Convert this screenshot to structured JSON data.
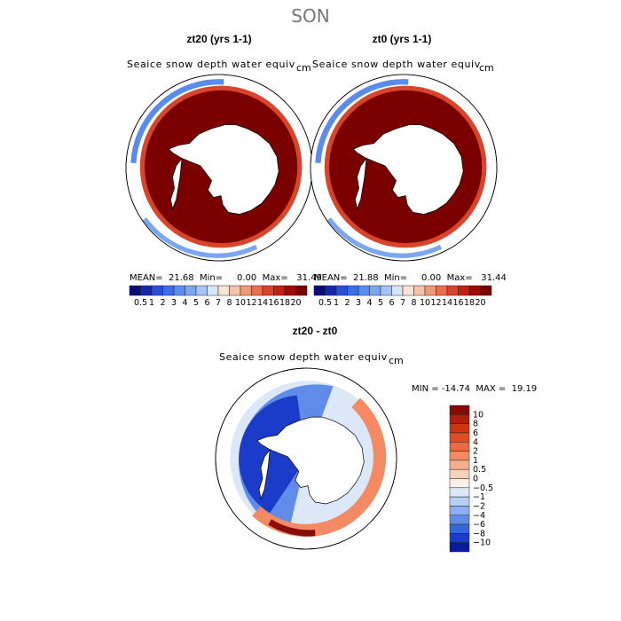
{
  "title": "SON",
  "panels": [
    {
      "heading": "zt20 (yrs 1-1)",
      "variable": "Seaice snow depth water equiv",
      "units": "cm",
      "stats": "MEAN=  21.68  Min=     0.00  Max=   31.49"
    },
    {
      "heading": "zt0 (yrs 1-1)",
      "variable": "Seaice snow depth water equiv",
      "units": "cm",
      "stats": "MEAN=  21.88  Min=     0.00  Max=   31.44"
    }
  ],
  "diff_panel": {
    "heading": "zt20 - zt0",
    "variable": "Seaice snow depth water equiv",
    "units": "cm",
    "stats": "MIN = -14.74  MAX =  19.19"
  },
  "chart_data": [
    {
      "type": "heatmap",
      "title": "zt20 (yrs 1-1)",
      "subtitle": "Seaice snow depth water equiv",
      "units": "cm",
      "mean": 21.68,
      "min": 0.0,
      "max": 31.49,
      "colorbar_levels": [
        "0.5",
        "1",
        "2",
        "3",
        "4",
        "5",
        "6",
        "7",
        "8",
        "10",
        "12",
        "14",
        "16",
        "18",
        "20"
      ],
      "colorbar_colors": [
        "#0a0a7a",
        "#1428a8",
        "#2a4fd0",
        "#3c6ee6",
        "#5a8cf0",
        "#7aa6f2",
        "#a4c4f6",
        "#d6e6fb",
        "#fbe2d2",
        "#f7c2a6",
        "#f29a78",
        "#e8704c",
        "#d8452a",
        "#c02214",
        "#9a0c08",
        "#7a0000"
      ]
    },
    {
      "type": "heatmap",
      "title": "zt0 (yrs 1-1)",
      "subtitle": "Seaice snow depth water equiv",
      "units": "cm",
      "mean": 21.88,
      "min": 0.0,
      "max": 31.44,
      "colorbar_levels": [
        "0.5",
        "1",
        "2",
        "3",
        "4",
        "5",
        "6",
        "7",
        "8",
        "10",
        "12",
        "14",
        "16",
        "18",
        "20"
      ],
      "colorbar_colors": [
        "#0a0a7a",
        "#1428a8",
        "#2a4fd0",
        "#3c6ee6",
        "#5a8cf0",
        "#7aa6f2",
        "#a4c4f6",
        "#d6e6fb",
        "#fbe2d2",
        "#f7c2a6",
        "#f29a78",
        "#e8704c",
        "#d8452a",
        "#c02214",
        "#9a0c08",
        "#7a0000"
      ]
    },
    {
      "type": "heatmap",
      "title": "zt20 - zt0",
      "subtitle": "Seaice snow depth water equiv",
      "units": "cm",
      "min": -14.74,
      "max": 19.19,
      "colorbar_levels": [
        "10",
        "8",
        "6",
        "4",
        "2",
        "1",
        "0.5",
        "0",
        "−0.5",
        "−1",
        "−2",
        "−4",
        "−6",
        "−8",
        "−10"
      ],
      "colorbar_colors": [
        "#8a0a08",
        "#b01e10",
        "#cc3418",
        "#e04c24",
        "#ec6a40",
        "#f48a64",
        "#f6ae8e",
        "#f9d2bc",
        "#fbf0ea",
        "#dce8f8",
        "#b6d0f6",
        "#8cb0f2",
        "#5e8ce8",
        "#3466dc",
        "#1a3cc8",
        "#0a1a9c"
      ]
    }
  ]
}
